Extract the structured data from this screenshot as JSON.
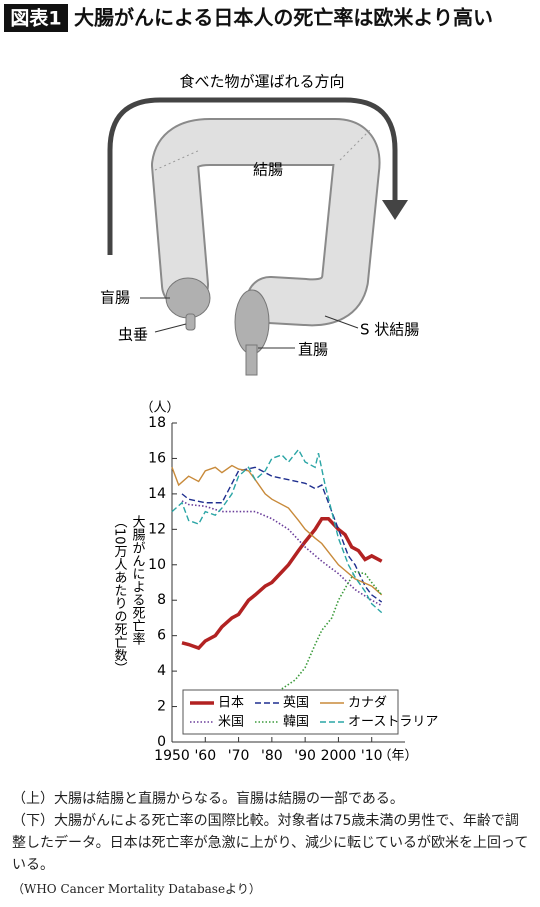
{
  "header": {
    "badge": "図表1",
    "title": "大腸がんによる日本人の死亡率は欧米より高い"
  },
  "diagram": {
    "direction": "食べた物が運ばれる方向",
    "colon": "結腸",
    "cecum": "盲腸",
    "appendix": "虫垂",
    "rectum": "直腸",
    "sigmoid": "S 状結腸"
  },
  "chart_data": {
    "type": "line",
    "y_unit": "（人）",
    "x_unit": "（年）",
    "y_label": "大腸がんによる死亡率",
    "y_label_note": "（10万人あたりの死亡数）",
    "xlim": [
      1950,
      2020
    ],
    "ylim": [
      0,
      18
    ],
    "xticks": [
      1950,
      {
        "value": 1960,
        "label": "'60"
      },
      {
        "value": 1970,
        "label": "'70"
      },
      {
        "value": 1980,
        "label": "'80"
      },
      {
        "value": 1990,
        "label": "'90"
      },
      2000,
      {
        "value": 2010,
        "label": "'10"
      }
    ],
    "yticks": [
      0,
      2,
      4,
      6,
      8,
      10,
      12,
      14,
      16,
      18
    ],
    "series": [
      {
        "name": "日本",
        "color": "#b22222",
        "style": "solid",
        "linewidth": 3.5,
        "x": [
          1953,
          1955,
          1958,
          1960,
          1963,
          1965,
          1968,
          1970,
          1973,
          1975,
          1978,
          1980,
          1983,
          1985,
          1988,
          1990,
          1993,
          1995,
          1997,
          1999,
          2000,
          2002,
          2004,
          2006,
          2008,
          2010,
          2012,
          2013
        ],
        "values": [
          5.6,
          5.5,
          5.3,
          5.7,
          6.0,
          6.5,
          7.0,
          7.2,
          8.0,
          8.3,
          8.8,
          9.0,
          9.6,
          10.0,
          10.8,
          11.3,
          12.0,
          12.6,
          12.6,
          12.2,
          12.0,
          11.7,
          11.0,
          10.8,
          10.3,
          10.5,
          10.3,
          10.2
        ]
      },
      {
        "name": "英国",
        "color": "#1f2f8f",
        "style": "dashed",
        "linewidth": 1.4,
        "x": [
          1953,
          1955,
          1960,
          1965,
          1970,
          1975,
          1980,
          1985,
          1990,
          1993,
          1995,
          1997,
          2000,
          2003,
          2005,
          2008,
          2010,
          2013
        ],
        "values": [
          14.0,
          13.7,
          13.5,
          13.5,
          15.3,
          15.5,
          15.0,
          14.8,
          14.6,
          14.3,
          14.5,
          13.5,
          12.0,
          10.5,
          10.0,
          8.8,
          8.3,
          7.9
        ]
      },
      {
        "name": "カナダ",
        "color": "#c88a3a",
        "style": "solid",
        "linewidth": 1.4,
        "x": [
          1950,
          1952,
          1955,
          1958,
          1960,
          1963,
          1965,
          1968,
          1970,
          1973,
          1975,
          1978,
          1980,
          1985,
          1988,
          1990,
          1993,
          1995,
          2000,
          2005,
          2010,
          2013
        ],
        "values": [
          15.5,
          14.5,
          15.0,
          14.7,
          15.3,
          15.5,
          15.2,
          15.6,
          15.4,
          15.3,
          14.8,
          14.0,
          13.7,
          13.2,
          12.5,
          12.0,
          11.5,
          11.2,
          10.0,
          9.2,
          8.8,
          8.3
        ]
      },
      {
        "name": "米国",
        "color": "#6a3d9a",
        "style": "dotted",
        "linewidth": 1.6,
        "x": [
          1953,
          1955,
          1960,
          1965,
          1970,
          1975,
          1980,
          1985,
          1990,
          1995,
          2000,
          2005,
          2010,
          2013
        ],
        "values": [
          13.6,
          13.4,
          13.3,
          13.0,
          13.0,
          13.0,
          12.6,
          12.0,
          11.0,
          10.2,
          9.5,
          8.6,
          8.0,
          7.7
        ]
      },
      {
        "name": "韓国",
        "color": "#3a9a3a",
        "style": "dotted",
        "linewidth": 1.6,
        "x": [
          1983,
          1987,
          1990,
          1993,
          1995,
          1998,
          2000,
          2003,
          2005,
          2008,
          2010,
          2013
        ],
        "values": [
          3.0,
          3.5,
          4.2,
          5.5,
          6.3,
          7.0,
          8.0,
          9.0,
          9.6,
          9.5,
          9.0,
          8.3
        ]
      },
      {
        "name": "オーストラリア",
        "color": "#2aa5a5",
        "style": "dashed",
        "linewidth": 1.4,
        "x": [
          1950,
          1953,
          1955,
          1958,
          1960,
          1963,
          1965,
          1968,
          1970,
          1973,
          1975,
          1978,
          1980,
          1983,
          1985,
          1988,
          1990,
          1993,
          1994,
          1996,
          1998,
          2000,
          2003,
          2005,
          2008,
          2010,
          2013
        ],
        "values": [
          13.0,
          13.5,
          12.5,
          12.3,
          13.0,
          12.8,
          13.2,
          14.0,
          15.0,
          15.5,
          14.8,
          15.3,
          16.0,
          16.2,
          15.8,
          16.5,
          15.8,
          15.5,
          16.3,
          14.5,
          13.0,
          11.5,
          10.0,
          9.3,
          8.5,
          7.8,
          7.3
        ]
      }
    ]
  },
  "captions": [
    "（上）大腸は結腸と直腸からなる。盲腸は結腸の一部である。",
    "（下）大腸がんによる死亡率の国際比較。対象者は75歳未満の男性で、年齢で調整したデータ。日本は死亡率が急激に上がり、減少に転じているが欧米を上回っている。"
  ],
  "source": "（WHO Cancer Mortality Databaseより）"
}
